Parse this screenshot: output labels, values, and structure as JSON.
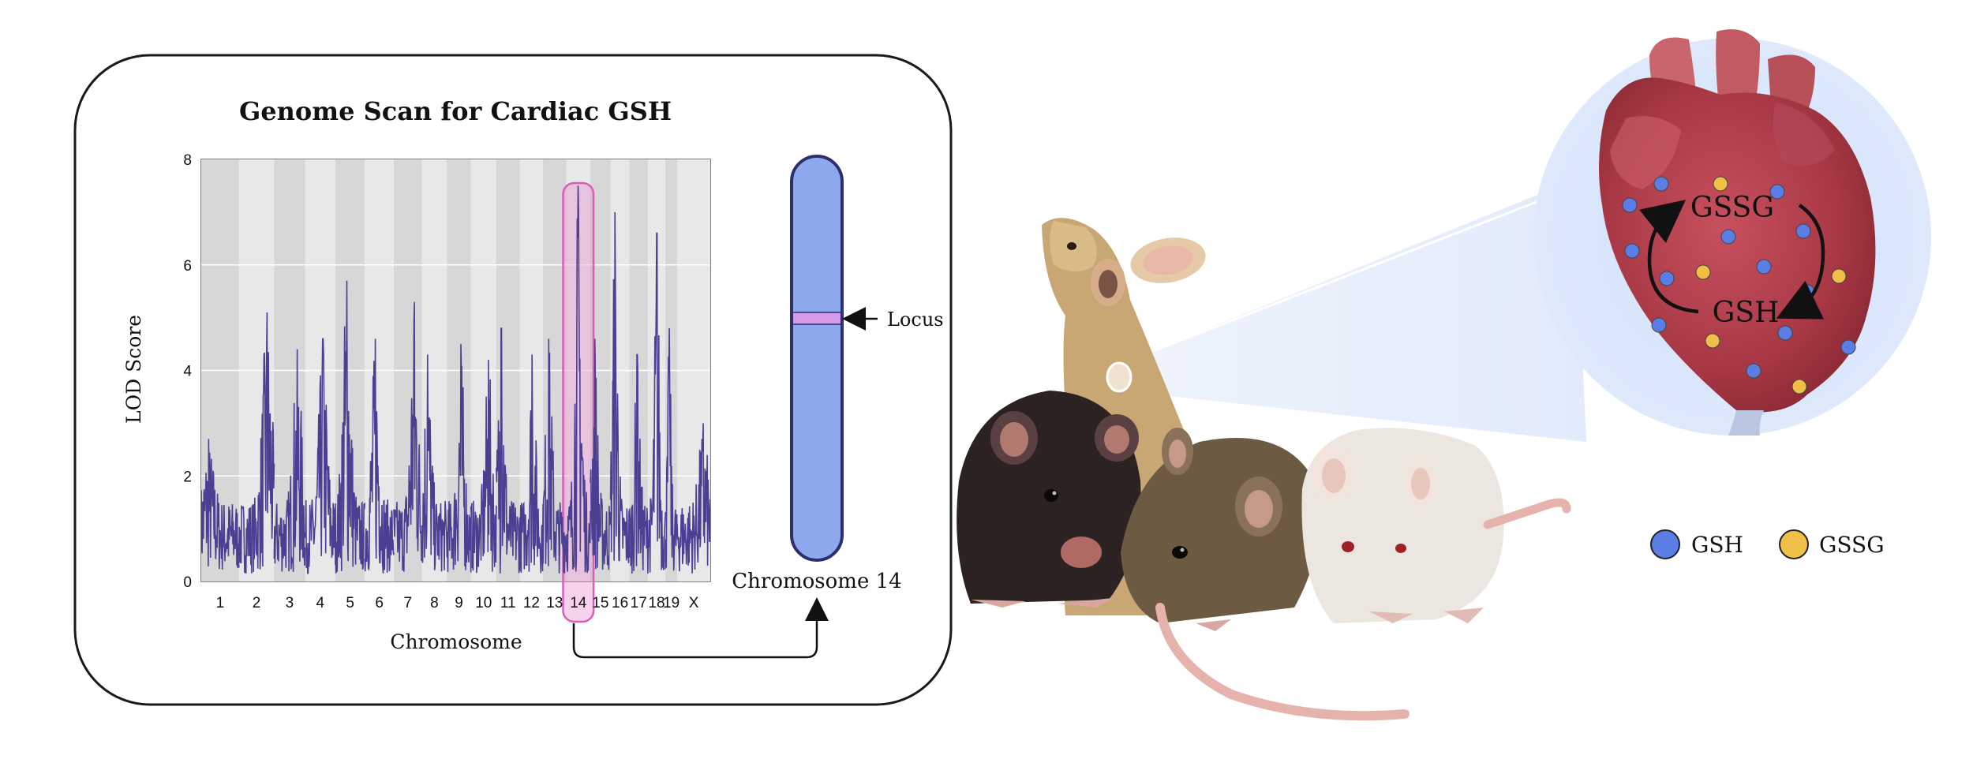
{
  "chart_data": {
    "type": "line",
    "title": "Genome Scan for Cardiac GSH",
    "xlabel": "Chromosome",
    "ylabel": "LOD Score",
    "ylim": [
      0,
      8
    ],
    "yticks": [
      "0",
      "2",
      "4",
      "6",
      "8"
    ],
    "categories": [
      "1",
      "2",
      "3",
      "4",
      "5",
      "6",
      "7",
      "8",
      "9",
      "10",
      "11",
      "12",
      "13",
      "14",
      "15",
      "16",
      "17",
      "18",
      "19",
      "X"
    ],
    "highlighted_chromosome": "14",
    "peak_lod_by_chromosome": [
      2.7,
      5.1,
      4.4,
      4.6,
      5.7,
      4.6,
      5.3,
      4.3,
      4.5,
      4.2,
      4.8,
      4.3,
      4.6,
      7.5,
      4.6,
      7.0,
      4.3,
      6.6,
      4.8,
      3.0
    ],
    "grid": "horizontal",
    "background": "alternating-gray-bands"
  },
  "chromosome": {
    "label": "Chromosome 14",
    "locus_label": "Locus",
    "locus_position_fraction": 0.4
  },
  "heart": {
    "cycle_top": "GSSG",
    "cycle_bottom": "GSH"
  },
  "legend": {
    "items": [
      {
        "label": "GSH",
        "color": "#5b7ee6"
      },
      {
        "label": "GSSG",
        "color": "#f0bf45"
      }
    ]
  },
  "colors": {
    "trace": "#4a3f93",
    "highlight": "#e57ec8",
    "chromosome_fill": "#8ea8ee",
    "chromosome_stroke": "#2c2e6e",
    "locus_band": "#d59be8"
  },
  "mice": [
    "tan-mouse",
    "black-mouse",
    "brown-mouse",
    "white-mouse"
  ]
}
